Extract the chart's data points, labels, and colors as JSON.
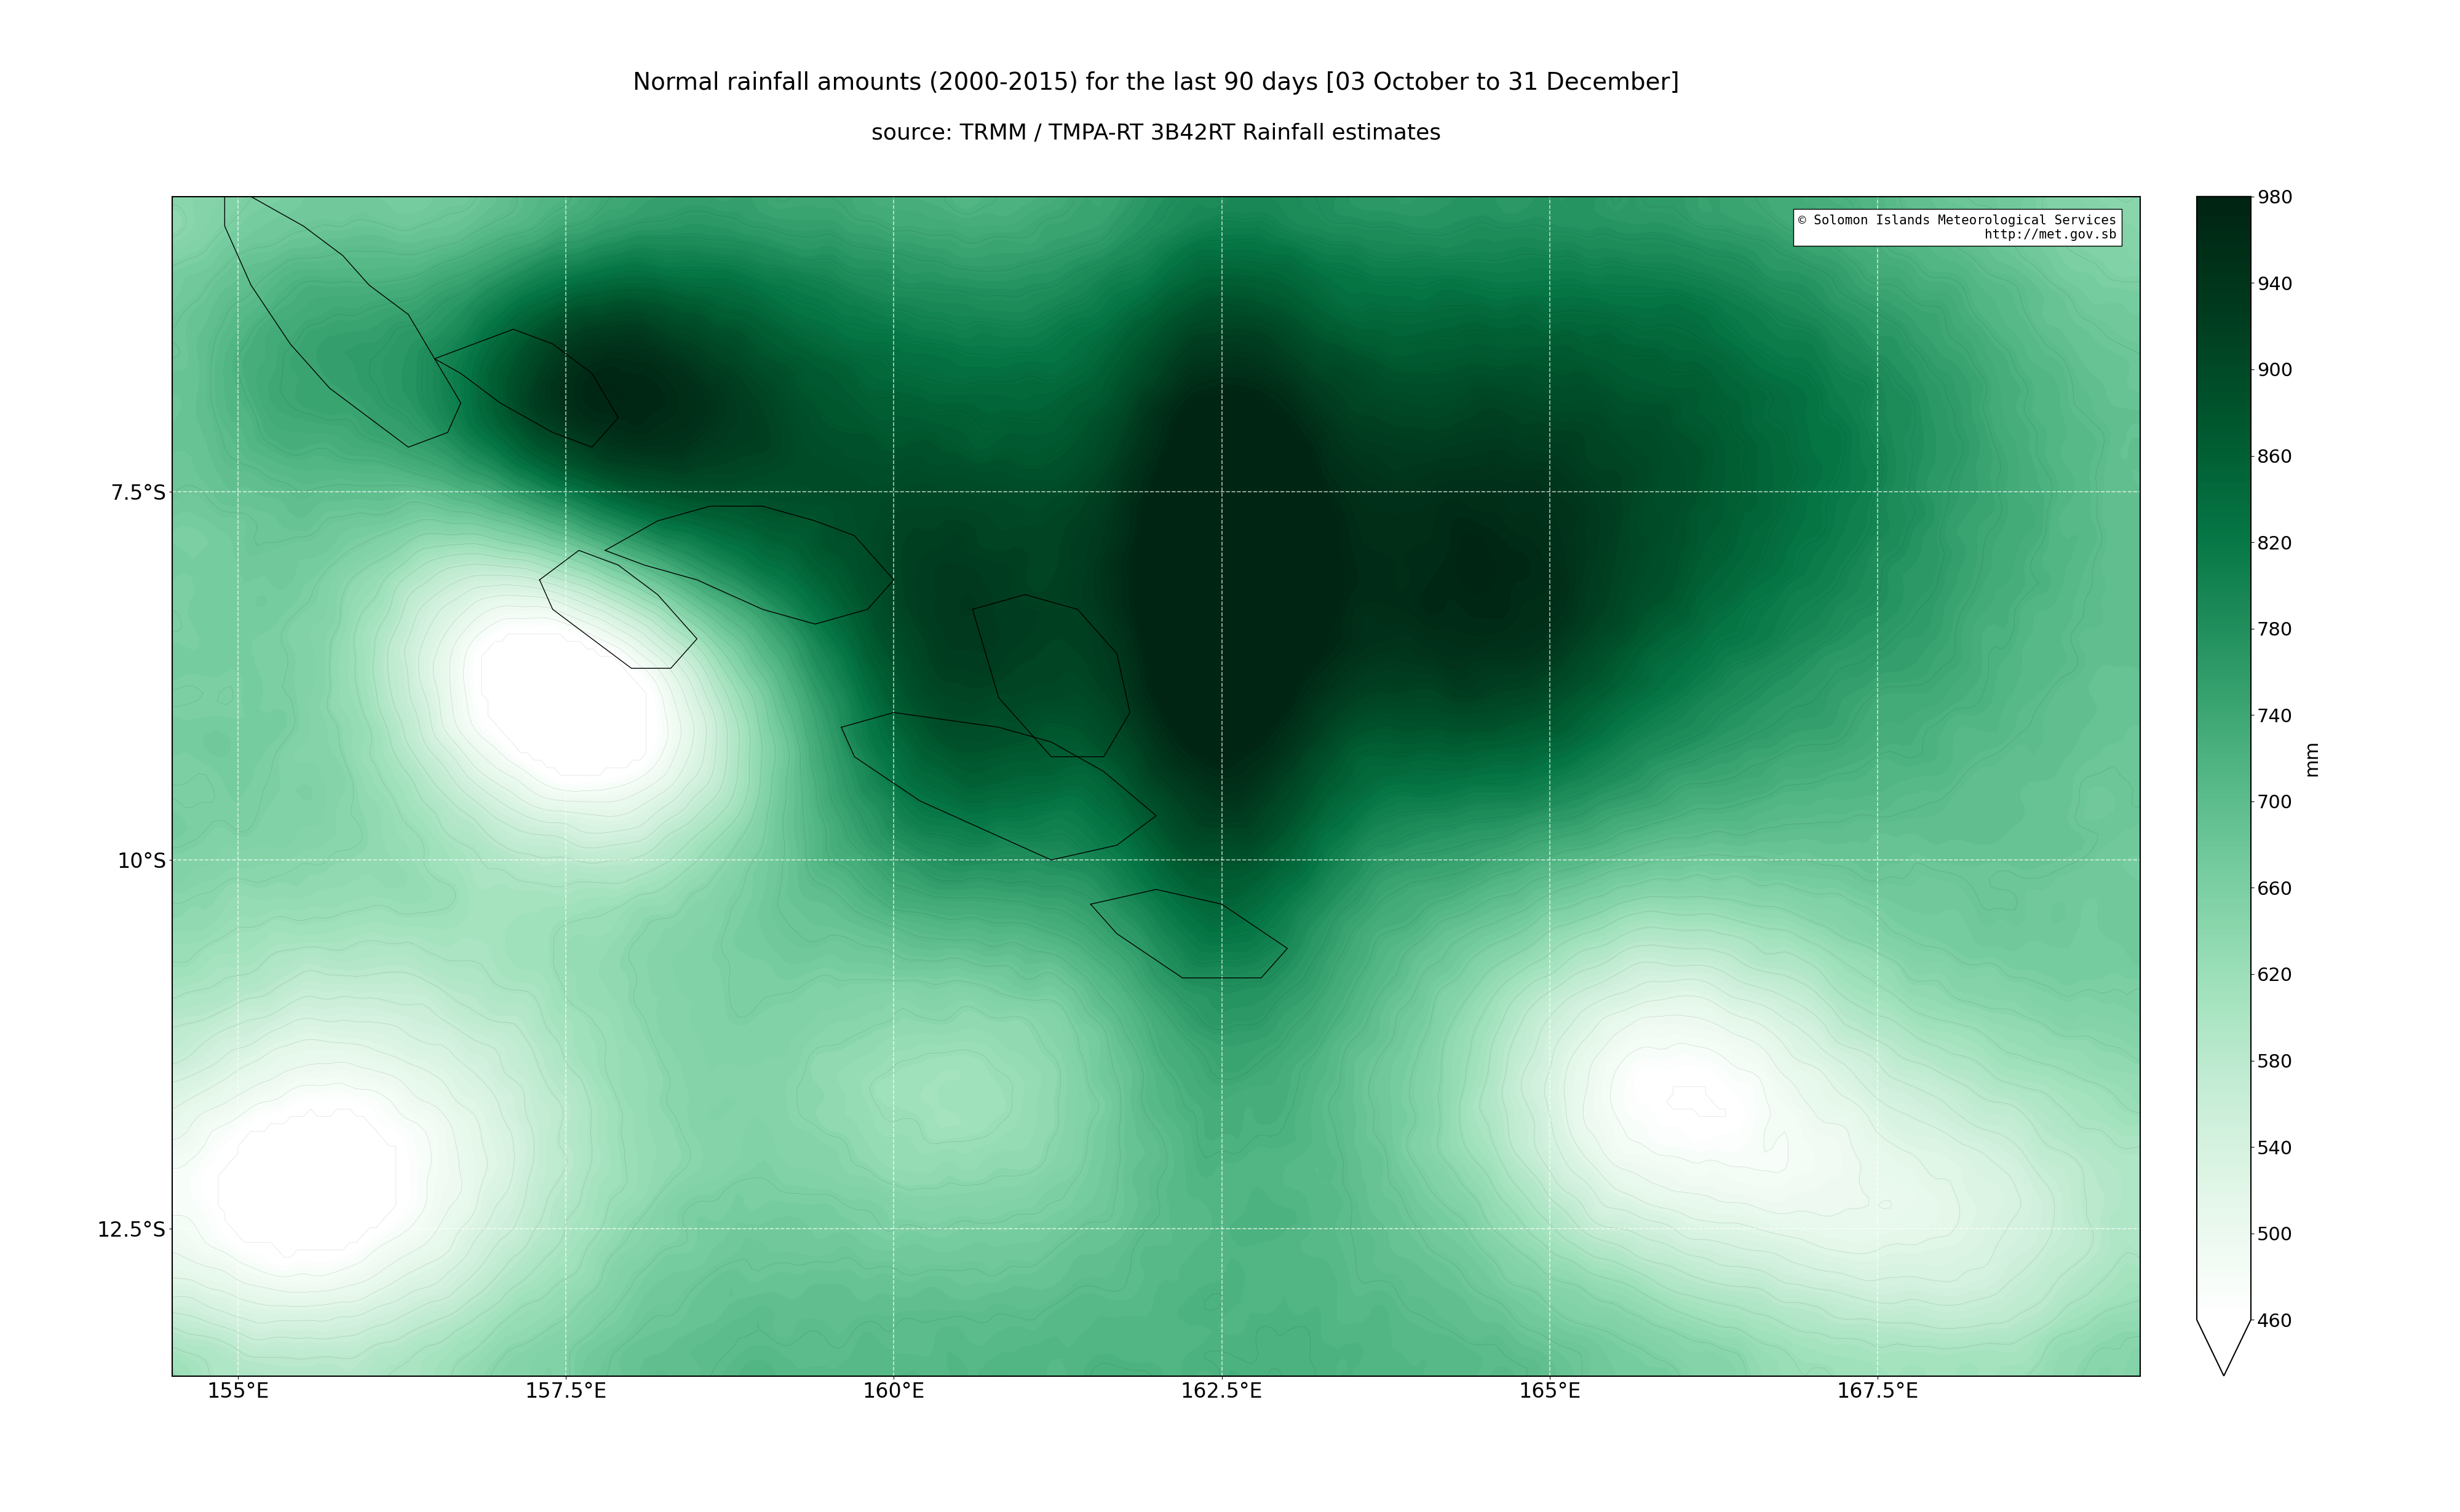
{
  "title_line1": "Normal rainfall amounts (2000-2015) for the last 90 days [03 October to 31 December]",
  "title_line2": "source: TRMM / TMPA-RT 3B42RT Rainfall estimates",
  "title_fontsize": 28,
  "subtitle_fontsize": 26,
  "lon_min": 154.5,
  "lon_max": 169.5,
  "lat_min": -13.5,
  "lat_max": -5.5,
  "colorbar_min": 460,
  "colorbar_max": 980,
  "colorbar_ticks": [
    460,
    500,
    540,
    580,
    620,
    660,
    700,
    740,
    780,
    820,
    860,
    900,
    940,
    980
  ],
  "colorbar_label": "mm",
  "attribution_line1": "© Solomon Islands Meteorological Services",
  "attribution_line2": "http://met.gov.sb",
  "xticks": [
    155.0,
    157.5,
    160.0,
    162.5,
    165.0,
    167.5
  ],
  "yticks": [
    -7.5,
    -10.0,
    -12.5
  ],
  "background_color": "#ffffff",
  "grid_color": "#aaaaaa"
}
